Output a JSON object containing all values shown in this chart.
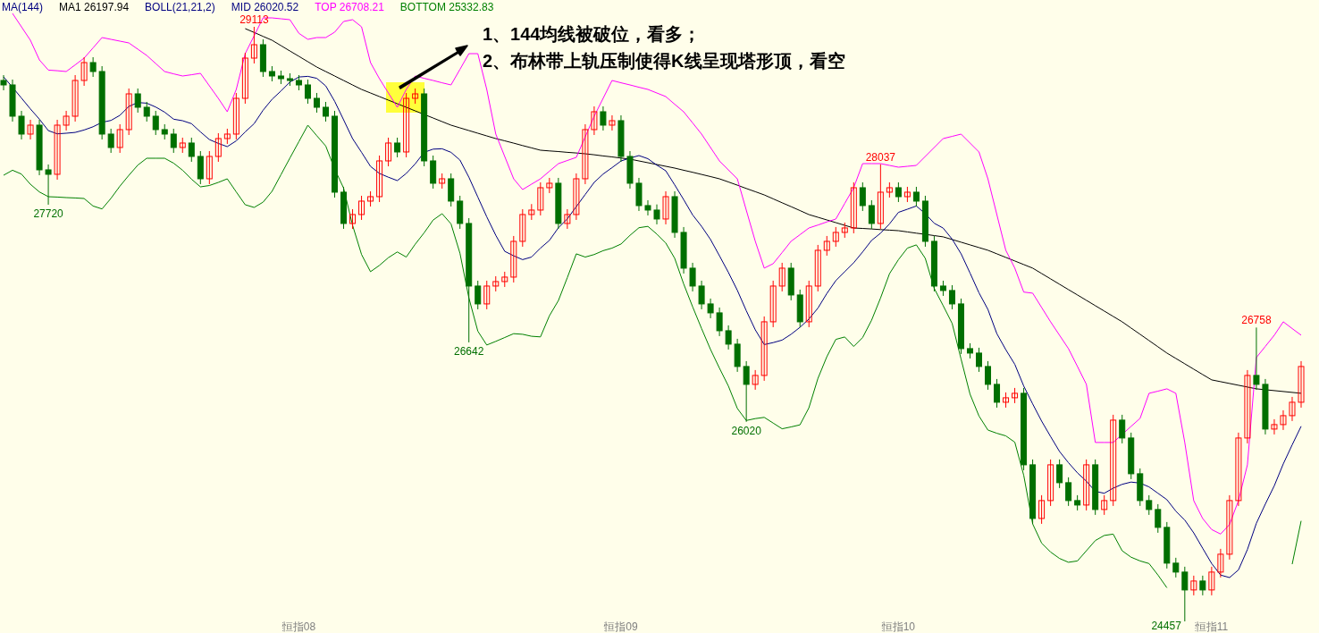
{
  "chart_data": {
    "type": "candlestick",
    "categories": [
      null,
      null,
      null,
      null,
      null,
      null,
      null,
      null,
      null,
      null,
      null,
      null,
      null,
      null,
      null,
      null,
      null,
      null,
      null,
      null,
      null,
      null,
      null,
      null,
      null,
      null,
      null,
      null,
      null,
      null,
      null,
      null,
      null,
      "恒指08",
      null,
      null,
      null,
      null,
      null,
      null,
      null,
      null,
      null,
      null,
      null,
      null,
      null,
      null,
      null,
      null,
      null,
      null,
      null,
      null,
      null,
      null,
      null,
      null,
      null,
      null,
      null,
      null,
      null,
      null,
      null,
      null,
      null,
      null,
      null,
      "恒指09",
      null,
      null,
      null,
      null,
      null,
      null,
      null,
      null,
      null,
      null,
      null,
      null,
      null,
      null,
      null,
      null,
      null,
      null,
      null,
      null,
      null,
      null,
      null,
      null,
      null,
      null,
      null,
      null,
      null,
      null,
      "恒指10",
      null,
      null,
      null,
      null,
      null,
      null,
      null,
      null,
      null,
      null,
      null,
      null,
      null,
      null,
      null,
      null,
      null,
      null,
      null,
      null,
      null,
      null,
      null,
      null,
      null,
      null,
      null,
      null,
      null,
      null,
      null,
      null,
      null,
      null,
      "恒指11",
      null,
      null,
      null,
      null,
      null,
      null,
      null,
      null,
      null,
      null
    ],
    "ohlc": [
      [
        28693,
        28735,
        28616,
        28658
      ],
      [
        28658,
        28700,
        28371,
        28413
      ],
      [
        28413,
        28455,
        28231,
        28273
      ],
      [
        28273,
        28385,
        28231,
        28343
      ],
      [
        28343,
        28385,
        27951,
        27993
      ],
      [
        27993,
        28035,
        27720,
        27958
      ],
      [
        27958,
        28385,
        27916,
        28343
      ],
      [
        28343,
        28455,
        28301,
        28413
      ],
      [
        28413,
        28735,
        28371,
        28693
      ],
      [
        28693,
        28875,
        28651,
        28833
      ],
      [
        28833,
        28875,
        28721,
        28763
      ],
      [
        28763,
        28805,
        28231,
        28273
      ],
      [
        28273,
        28315,
        28126,
        28168
      ],
      [
        28168,
        28350,
        28126,
        28308
      ],
      [
        28308,
        28630,
        28266,
        28588
      ],
      [
        28588,
        28630,
        28441,
        28483
      ],
      [
        28483,
        28525,
        28371,
        28413
      ],
      [
        28413,
        28455,
        28266,
        28308
      ],
      [
        28308,
        28350,
        28231,
        28273
      ],
      [
        28273,
        28315,
        28126,
        28168
      ],
      [
        28168,
        28245,
        28126,
        28203
      ],
      [
        28203,
        28245,
        28056,
        28098
      ],
      [
        28098,
        28140,
        27881,
        27923
      ],
      [
        27923,
        28140,
        27881,
        28098
      ],
      [
        28098,
        28280,
        28056,
        28238
      ],
      [
        28238,
        28315,
        28196,
        28273
      ],
      [
        28273,
        28595,
        28231,
        28553
      ],
      [
        28553,
        28910,
        28511,
        28868
      ],
      [
        28868,
        29113,
        28826,
        28973
      ],
      [
        28973,
        29015,
        28721,
        28763
      ],
      [
        28763,
        28805,
        28686,
        28728
      ],
      [
        28728,
        28770,
        28665,
        28707
      ],
      [
        28707,
        28749,
        28651,
        28693
      ],
      [
        28693,
        28735,
        28616,
        28658
      ],
      [
        28658,
        28700,
        28511,
        28553
      ],
      [
        28553,
        28595,
        28441,
        28483
      ],
      [
        28483,
        28525,
        28371,
        28413
      ],
      [
        28413,
        28455,
        27776,
        27818
      ],
      [
        27818,
        27860,
        27531,
        27573
      ],
      [
        27573,
        27685,
        27531,
        27643
      ],
      [
        27643,
        27790,
        27601,
        27748
      ],
      [
        27748,
        27825,
        27706,
        27783
      ],
      [
        27783,
        28105,
        27741,
        28063
      ],
      [
        28063,
        28245,
        28021,
        28203
      ],
      [
        28203,
        28245,
        28091,
        28133
      ],
      [
        28133,
        28595,
        28091,
        28553
      ],
      [
        28553,
        28630,
        28511,
        28588
      ],
      [
        28588,
        28630,
        28021,
        28063
      ],
      [
        28063,
        28105,
        27846,
        27888
      ],
      [
        27888,
        27965,
        27846,
        27923
      ],
      [
        27923,
        27965,
        27706,
        27748
      ],
      [
        27748,
        27790,
        27531,
        27573
      ],
      [
        27573,
        27615,
        26642,
        27083
      ],
      [
        27083,
        27125,
        26901,
        26943
      ],
      [
        26943,
        27125,
        26901,
        27083
      ],
      [
        27083,
        27160,
        27041,
        27118
      ],
      [
        27118,
        27195,
        27076,
        27153
      ],
      [
        27153,
        27475,
        27111,
        27433
      ],
      [
        27433,
        27685,
        27391,
        27643
      ],
      [
        27643,
        27725,
        27601,
        27678
      ],
      [
        27678,
        27895,
        27636,
        27853
      ],
      [
        27853,
        27930,
        27811,
        27888
      ],
      [
        27888,
        27930,
        27531,
        27573
      ],
      [
        27573,
        27685,
        27531,
        27643
      ],
      [
        27643,
        27965,
        27601,
        27923
      ],
      [
        27923,
        28350,
        27881,
        28308
      ],
      [
        28308,
        28490,
        28266,
        28448
      ],
      [
        28448,
        28490,
        28301,
        28343
      ],
      [
        28343,
        28420,
        28301,
        28378
      ],
      [
        28378,
        28420,
        28056,
        28098
      ],
      [
        28098,
        28140,
        27846,
        27888
      ],
      [
        27888,
        27930,
        27671,
        27713
      ],
      [
        27713,
        27755,
        27636,
        27678
      ],
      [
        27678,
        27722,
        27566,
        27608
      ],
      [
        27608,
        27825,
        27566,
        27783
      ],
      [
        27783,
        27825,
        27461,
        27503
      ],
      [
        27503,
        27545,
        27181,
        27223
      ],
      [
        27223,
        27265,
        27041,
        27083
      ],
      [
        27083,
        27125,
        26901,
        26943
      ],
      [
        26943,
        26985,
        26831,
        26873
      ],
      [
        26873,
        26915,
        26691,
        26733
      ],
      [
        26733,
        26775,
        26586,
        26628
      ],
      [
        26628,
        26670,
        26411,
        26453
      ],
      [
        26453,
        26495,
        26020,
        26313
      ],
      [
        26313,
        26425,
        26271,
        26383
      ],
      [
        26383,
        26845,
        26341,
        26803
      ],
      [
        26803,
        27125,
        26761,
        27083
      ],
      [
        27083,
        27265,
        27041,
        27223
      ],
      [
        27223,
        27265,
        26971,
        27013
      ],
      [
        27013,
        27055,
        26761,
        26803
      ],
      [
        26803,
        27125,
        26761,
        27083
      ],
      [
        27083,
        27405,
        27041,
        27363
      ],
      [
        27363,
        27475,
        27321,
        27433
      ],
      [
        27433,
        27545,
        27391,
        27503
      ],
      [
        27503,
        27580,
        27461,
        27538
      ],
      [
        27538,
        27895,
        27496,
        27853
      ],
      [
        27853,
        27895,
        27671,
        27713
      ],
      [
        27713,
        27755,
        27531,
        27573
      ],
      [
        27573,
        28037,
        27531,
        27818
      ],
      [
        27818,
        27895,
        27776,
        27853
      ],
      [
        27853,
        27895,
        27741,
        27783
      ],
      [
        27783,
        27860,
        27741,
        27818
      ],
      [
        27818,
        27860,
        27706,
        27748
      ],
      [
        27748,
        27790,
        27391,
        27433
      ],
      [
        27433,
        27475,
        27041,
        27083
      ],
      [
        27083,
        27125,
        27006,
        27048
      ],
      [
        27048,
        27090,
        26901,
        26943
      ],
      [
        26943,
        26985,
        26551,
        26593
      ],
      [
        26593,
        26635,
        26516,
        26558
      ],
      [
        26558,
        26600,
        26411,
        26453
      ],
      [
        26453,
        26495,
        26271,
        26313
      ],
      [
        26313,
        26355,
        26131,
        26173
      ],
      [
        26173,
        26250,
        26131,
        26208
      ],
      [
        26208,
        26285,
        26166,
        26243
      ],
      [
        26243,
        26285,
        25641,
        25683
      ],
      [
        25683,
        25725,
        25221,
        25263
      ],
      [
        25263,
        25445,
        25221,
        25403
      ],
      [
        25403,
        25725,
        25361,
        25683
      ],
      [
        25683,
        25725,
        25501,
        25543
      ],
      [
        25543,
        25585,
        25361,
        25403
      ],
      [
        25403,
        25445,
        25326,
        25368
      ],
      [
        25368,
        25725,
        25326,
        25683
      ],
      [
        25683,
        25725,
        25291,
        25333
      ],
      [
        25333,
        25445,
        25291,
        25403
      ],
      [
        25403,
        26075,
        25361,
        26033
      ],
      [
        26033,
        26075,
        25851,
        25893
      ],
      [
        25893,
        25935,
        25571,
        25613
      ],
      [
        25613,
        25655,
        25361,
        25403
      ],
      [
        25403,
        25445,
        25291,
        25333
      ],
      [
        25333,
        25375,
        25151,
        25193
      ],
      [
        25193,
        25235,
        24871,
        24913
      ],
      [
        24913,
        24955,
        24801,
        24843
      ],
      [
        24843,
        24885,
        24457,
        24703
      ],
      [
        24703,
        24815,
        24661,
        24773
      ],
      [
        24773,
        24815,
        24661,
        24703
      ],
      [
        24703,
        24885,
        24661,
        24843
      ],
      [
        24843,
        25025,
        24801,
        24983
      ],
      [
        24983,
        25445,
        24941,
        25403
      ],
      [
        25403,
        25935,
        25361,
        25893
      ],
      [
        25893,
        26425,
        25851,
        26383
      ],
      [
        26383,
        26758,
        26271,
        26313
      ],
      [
        26313,
        26355,
        25921,
        25963
      ],
      [
        25963,
        26040,
        25921,
        25998
      ],
      [
        25998,
        26110,
        25956,
        26068
      ],
      [
        26068,
        26215,
        26026,
        26173
      ],
      [
        26173,
        26495,
        26131,
        26453
      ]
    ],
    "series": [
      {
        "name": "MA1 26197.94",
        "type": "line",
        "color": "#000000",
        "values": [
          null,
          null,
          null,
          null,
          null,
          null,
          null,
          null,
          null,
          null,
          null,
          null,
          null,
          null,
          null,
          null,
          null,
          null,
          null,
          null,
          null,
          null,
          null,
          null,
          null,
          null,
          null,
          29099,
          29069,
          29038,
          29008,
          28966,
          28924,
          28882,
          28840,
          28798,
          28763,
          28728,
          28693,
          28658,
          28623,
          28595,
          28567,
          28539,
          28511,
          28483,
          28455,
          28427,
          28399,
          28371,
          28343,
          28322,
          28301,
          28280,
          28259,
          28238,
          28220,
          28202,
          28183,
          28165,
          28147,
          28141,
          28136,
          28130,
          28125,
          28119,
          28111,
          28102,
          28094,
          28085,
          28077,
          28063,
          28049,
          28035,
          28021,
          28007,
          27990,
          27974,
          27957,
          27940,
          27923,
          27898,
          27873,
          27847,
          27822,
          27797,
          27766,
          27735,
          27705,
          27674,
          27643,
          27622,
          27601,
          27580,
          27559,
          27538,
          27534,
          27530,
          27525,
          27521,
          27517,
          27507,
          27497,
          27488,
          27478,
          27468,
          27447,
          27426,
          27405,
          27384,
          27363,
          27335,
          27307,
          27279,
          27251,
          27223,
          27181,
          27139,
          27097,
          27055,
          27013,
          26971,
          26929,
          26887,
          26845,
          26803,
          26754,
          26705,
          26656,
          26607,
          26558,
          26516,
          26474,
          26432,
          26390,
          26348,
          26334,
          26320,
          26306,
          26292,
          26278,
          26271,
          26264,
          26257,
          26250,
          26243
        ]
      },
      {
        "name": "MID 26020.52",
        "type": "line",
        "color": "#000080",
        "values": [
          28721,
          28640,
          28555,
          28470,
          28390,
          28300,
          28275,
          28280,
          28286,
          28305,
          28330,
          28365,
          28380,
          28420,
          28490,
          28520,
          28515,
          28485,
          28445,
          28390,
          28378,
          28355,
          28290,
          28230,
          28200,
          28175,
          28220,
          28290,
          28355,
          28460,
          28545,
          28610,
          28680,
          28720,
          28725,
          28710,
          28650,
          28530,
          28385,
          28238,
          28130,
          28020,
          27965,
          27935,
          27909,
          27965,
          28040,
          28130,
          28155,
          28158,
          28130,
          28070,
          27935,
          27780,
          27625,
          27480,
          27355,
          27320,
          27290,
          27310,
          27380,
          27440,
          27540,
          27610,
          27705,
          27800,
          27895,
          27960,
          28010,
          28063,
          28085,
          28105,
          28080,
          28030,
          27986,
          27875,
          27760,
          27640,
          27550,
          27447,
          27320,
          27190,
          27050,
          26890,
          26740,
          26625,
          26640,
          26660,
          26705,
          26760,
          26825,
          26910,
          27025,
          27125,
          27195,
          27265,
          27350,
          27440,
          27497,
          27570,
          27660,
          27685,
          27710,
          27650,
          27575,
          27537,
          27450,
          27335,
          27185,
          27030,
          26900,
          26710,
          26585,
          26470,
          26300,
          26160,
          26025,
          25905,
          25788,
          25700,
          25620,
          25555,
          25475,
          25460,
          25500,
          25530,
          25548,
          25540,
          25510,
          25460,
          25410,
          25320,
          25250,
          25150,
          25030,
          24910,
          24820,
          24800,
          24860,
          25020,
          25225,
          25375,
          25520,
          25690,
          25840,
          25985
        ]
      },
      {
        "name": "TOP 26708.21",
        "type": "line",
        "color": "#ff00ff",
        "values": [
          null,
          29218,
          29113,
          29008,
          28854,
          28774,
          28769,
          28763,
          28815,
          28868,
          28948,
          29029,
          29015,
          29001,
          28987,
          28938,
          28889,
          28826,
          28763,
          28745,
          28728,
          28738,
          28749,
          28651,
          28553,
          28448,
          28623,
          28903,
          29043,
          29183,
          29183,
          29176,
          29169,
          29062,
          29015,
          29029,
          29029,
          29071,
          29155,
          29169,
          29113,
          28833,
          28707,
          28595,
          28483,
          28623,
          28728,
          28710,
          28693,
          28675,
          28658,
          28780,
          28903,
          28903,
          28623,
          28273,
          28098,
          27923,
          27839,
          27881,
          27923,
          27982,
          28042,
          28066,
          28091,
          28252,
          28413,
          28553,
          28693,
          28675,
          28658,
          28640,
          28623,
          28595,
          28567,
          28507,
          28448,
          28360,
          28273,
          28168,
          28063,
          27993,
          27923,
          27678,
          27433,
          27223,
          27258,
          27345,
          27433,
          27485,
          27538,
          27561,
          27585,
          27608,
          27730,
          27853,
          28042,
          28042,
          28042,
          28028,
          28014,
          28021,
          28028,
          28098,
          28168,
          28238,
          28255,
          28273,
          28203,
          28133,
          27923,
          27643,
          27363,
          27223,
          27036,
          27027,
          26915,
          26803,
          26698,
          26593,
          26453,
          26313,
          25858,
          25858,
          25858,
          25921,
          25984,
          26047,
          26243,
          26260,
          26278,
          26243,
          25858,
          25403,
          25263,
          25176,
          25141,
          25216,
          25403,
          25683,
          26523,
          26610,
          26698,
          26803,
          26750,
          26698
        ]
      },
      {
        "name": "BOTTOM 25332.83",
        "type": "line",
        "color": "#008000",
        "values": [
          27951,
          27990,
          27960,
          27880,
          27820,
          27783,
          27780,
          27776,
          27773,
          27769,
          27710,
          27687,
          27770,
          27865,
          27950,
          28030,
          28084,
          28084,
          28084,
          28045,
          27990,
          27920,
          27860,
          27870,
          27895,
          27923,
          27820,
          27720,
          27699,
          27740,
          27825,
          27955,
          28085,
          28215,
          28343,
          28260,
          28180,
          28000,
          27850,
          27560,
          27330,
          27195,
          27245,
          27305,
          27350,
          27310,
          27410,
          27500,
          27600,
          27650,
          27570,
          27340,
          26990,
          26730,
          26621,
          26650,
          26680,
          26710,
          26705,
          26690,
          26685,
          26850,
          26970,
          27150,
          27335,
          27310,
          27330,
          27360,
          27380,
          27412,
          27480,
          27540,
          27550,
          27490,
          27420,
          27300,
          27100,
          26920,
          26750,
          26586,
          26440,
          26300,
          26125,
          26030,
          26045,
          26055,
          26010,
          25965,
          25980,
          25996,
          26130,
          26360,
          26530,
          26665,
          26684,
          26610,
          26680,
          26815,
          26990,
          27180,
          27290,
          27380,
          27405,
          27300,
          27065,
          26930,
          26790,
          26510,
          26236,
          26065,
          25955,
          25930,
          25910,
          25860,
          25600,
          25220,
          25070,
          25000,
          24950,
          24920,
          24930,
          25010,
          25090,
          25130,
          25140,
          25010,
          24960,
          24930,
          24910,
          24820,
          24720,
          null,
          null,
          null,
          null,
          null,
          null,
          null,
          null,
          null,
          null,
          null,
          null,
          null,
          24905,
          25244
        ]
      }
    ],
    "tick_labels": "x",
    "legend": "top left",
    "annotations": [
      "MA(144)",
      "BOLL(21,21,2)",
      "1、144均线被破位，看多；",
      "2、布林带上轨压制使得K线呈现塔形顶，看空",
      {
        "text": "29113",
        "y": 29113
      },
      {
        "text": "27720",
        "y": 27720
      },
      {
        "text": "26642",
        "y": 26642
      },
      {
        "text": "26020",
        "y": 26020
      },
      {
        "text": "28037",
        "y": 28037
      },
      {
        "text": "26758",
        "y": 26758
      },
      "24457"
    ]
  }
}
